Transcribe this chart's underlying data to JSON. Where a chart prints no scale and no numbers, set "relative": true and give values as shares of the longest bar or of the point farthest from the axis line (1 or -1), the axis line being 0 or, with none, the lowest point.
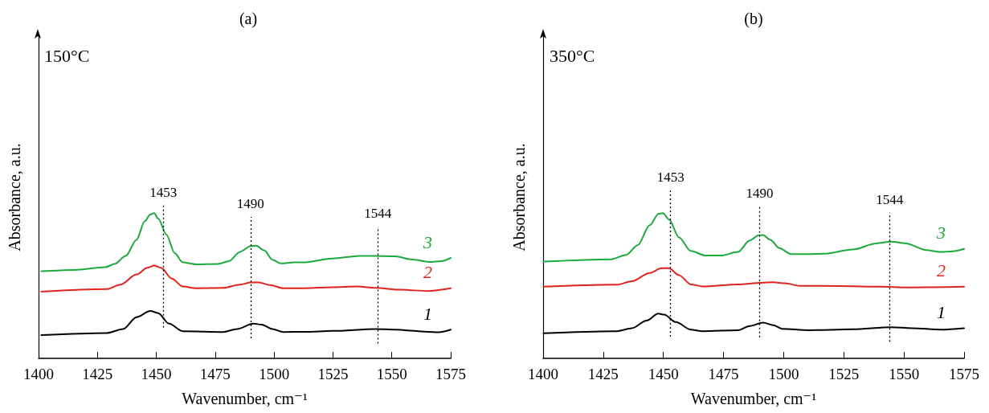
{
  "chart_data": [
    {
      "type": "line",
      "title": "(a)",
      "xlabel": "Wavenumber, cm⁻¹",
      "ylabel": "Absorbance, a.u.",
      "relative": true,
      "xlim": [
        1400,
        1575
      ],
      "xticks": [
        1400,
        1425,
        1450,
        1475,
        1500,
        1525,
        1550,
        1575
      ],
      "grid": false,
      "legend": false,
      "marker": "none",
      "line_style": "solid",
      "annotations": [
        "150°C"
      ],
      "ref_lines": [
        {
          "axis": "x",
          "value": 1453,
          "label": "1453",
          "line_style": "dotted",
          "color": "#000000"
        },
        {
          "axis": "x",
          "value": 1490,
          "label": "1490",
          "line_style": "dotted",
          "color": "#000000"
        },
        {
          "axis": "x",
          "value": 1544,
          "label": "1544",
          "line_style": "dotted",
          "color": "#000000"
        }
      ],
      "series": [
        {
          "name": "1",
          "color": "#000000",
          "x": [
            1401.2,
            1428.9,
            1435.9,
            1441.6,
            1447.4,
            1450.8,
            1455.4,
            1461.2,
            1478.5,
            1484.3,
            1491.2,
            1494.7,
            1499.3,
            1503.9,
            1513.2,
            1524.8,
            1543.2,
            1551.3,
            1565.2,
            1569.8,
            1575
          ],
          "values": [
            0.16,
            0.174,
            0.202,
            0.284,
            0.327,
            0.312,
            0.239,
            0.187,
            0.182,
            0.202,
            0.239,
            0.233,
            0.202,
            0.182,
            0.183,
            0.189,
            0.202,
            0.198,
            0.183,
            0.18,
            0.198
          ]
        },
        {
          "name": "2",
          "color": "#e0231c",
          "x": [
            1401.2,
            1428.9,
            1434.7,
            1441.6,
            1446.2,
            1449.1,
            1452.0,
            1456.6,
            1461.2,
            1467.0,
            1478.5,
            1485.5,
            1490.1,
            1493.6,
            1498.2,
            1504.0,
            1513.2,
            1524.8,
            1535.2,
            1543.2,
            1553.6,
            1565.2,
            1575
          ],
          "values": [
            0.459,
            0.477,
            0.508,
            0.578,
            0.624,
            0.639,
            0.624,
            0.55,
            0.495,
            0.483,
            0.486,
            0.508,
            0.523,
            0.523,
            0.505,
            0.483,
            0.483,
            0.49,
            0.495,
            0.486,
            0.473,
            0.464,
            0.483
          ]
        },
        {
          "name": "3",
          "color": "#1aaa3c",
          "x": [
            1401.2,
            1415.0,
            1428.3,
            1432.3,
            1437.0,
            1441.6,
            1445.1,
            1447.4,
            1449.1,
            1450.8,
            1454.3,
            1457.8,
            1461.2,
            1467.0,
            1476.2,
            1480.9,
            1485.5,
            1490.1,
            1492.4,
            1495.9,
            1499.3,
            1502.8,
            1508.6,
            1513.2,
            1524.8,
            1536.3,
            1543.2,
            1551.3,
            1559.4,
            1566.3,
            1571.0,
            1575
          ],
          "values": [
            0.6,
            0.609,
            0.628,
            0.651,
            0.706,
            0.817,
            0.945,
            0.991,
            1,
            0.963,
            0.853,
            0.725,
            0.661,
            0.648,
            0.651,
            0.67,
            0.734,
            0.774,
            0.776,
            0.743,
            0.679,
            0.655,
            0.661,
            0.662,
            0.688,
            0.706,
            0.706,
            0.703,
            0.679,
            0.664,
            0.67,
            0.692
          ]
        }
      ]
    },
    {
      "type": "line",
      "title": "(b)",
      "xlabel": "Wavenumber, cm⁻¹",
      "ylabel": "Absorbance, a.u.",
      "relative": true,
      "xlim": [
        1400,
        1575
      ],
      "xticks": [
        1400,
        1425,
        1450,
        1475,
        1500,
        1525,
        1550,
        1575
      ],
      "grid": false,
      "legend": false,
      "marker": "none",
      "line_style": "solid",
      "annotations": [
        "350°C"
      ],
      "ref_lines": [
        {
          "axis": "x",
          "value": 1453,
          "label": "1453",
          "line_style": "dotted",
          "color": "#000000"
        },
        {
          "axis": "x",
          "value": 1490,
          "label": "1490",
          "line_style": "dotted",
          "color": "#000000"
        },
        {
          "axis": "x",
          "value": 1544,
          "label": "1544",
          "line_style": "dotted",
          "color": "#000000"
        }
      ],
      "series": [
        {
          "name": "1",
          "color": "#000000",
          "x": [
            1400.2,
            1430.8,
            1436.9,
            1443.0,
            1447.9,
            1450.3,
            1455.2,
            1461.4,
            1466.3,
            1481.0,
            1485.9,
            1491.4,
            1495.7,
            1499.3,
            1510.4,
            1528.7,
            1544.7,
            1553.3,
            1565.5,
            1575
          ],
          "values": [
            0.173,
            0.1875,
            0.208,
            0.26,
            0.308,
            0.302,
            0.25,
            0.198,
            0.1875,
            0.194,
            0.223,
            0.246,
            0.229,
            0.204,
            0.194,
            0.2,
            0.215,
            0.208,
            0.198,
            0.208
          ]
        },
        {
          "name": "2",
          "color": "#e0231c",
          "x": [
            1400.2,
            1430.8,
            1436.9,
            1444.3,
            1449.2,
            1452.3,
            1456.5,
            1461.4,
            1466.3,
            1481.0,
            1490.8,
            1495.7,
            1500.6,
            1506.7,
            1522.6,
            1541.0,
            1550.8,
            1559.3,
            1575
          ],
          "values": [
            0.494,
            0.508,
            0.531,
            0.588,
            0.621,
            0.621,
            0.573,
            0.51,
            0.496,
            0.51,
            0.521,
            0.525,
            0.517,
            0.5,
            0.498,
            0.494,
            0.488,
            0.49,
            0.494
          ]
        },
        {
          "name": "3",
          "color": "#1aaa3c",
          "x": [
            1400.2,
            1428.4,
            1434.5,
            1439.4,
            1444.3,
            1448.0,
            1449.8,
            1452.3,
            1456.5,
            1461.4,
            1467.6,
            1473.7,
            1481.0,
            1485.9,
            1489.6,
            1491.4,
            1494.5,
            1498.2,
            1503.0,
            1510.4,
            1516.5,
            1528.7,
            1538.5,
            1544.7,
            1550.8,
            1559.3,
            1565.5,
            1570.4,
            1575
          ],
          "values": [
            0.667,
            0.683,
            0.713,
            0.781,
            0.917,
            0.996,
            1,
            0.958,
            0.833,
            0.74,
            0.708,
            0.708,
            0.733,
            0.813,
            0.848,
            0.85,
            0.817,
            0.76,
            0.719,
            0.719,
            0.721,
            0.75,
            0.792,
            0.804,
            0.792,
            0.746,
            0.733,
            0.738,
            0.754
          ]
        }
      ]
    }
  ]
}
